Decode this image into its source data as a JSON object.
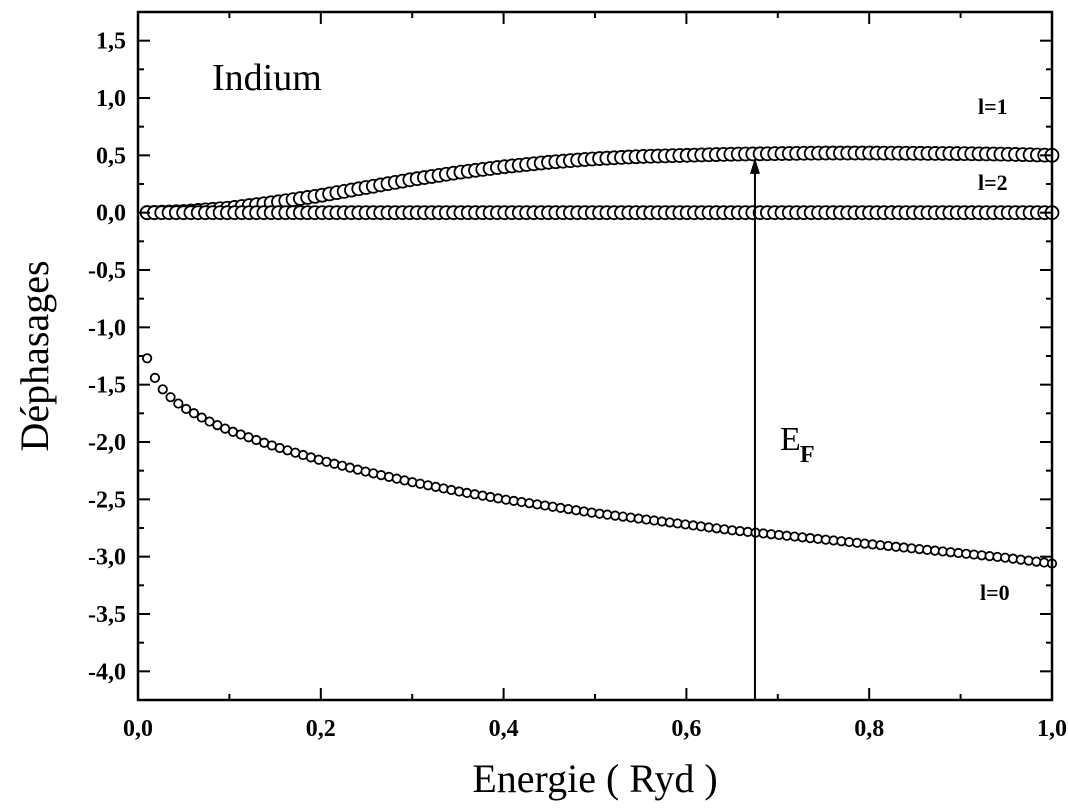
{
  "chart_data": {
    "type": "scatter",
    "title": "",
    "xlabel": "Energie ( Ryd )",
    "ylabel": "Déphasages",
    "xlim": [
      0.0,
      1.0
    ],
    "ylim": [
      -4.25,
      1.75
    ],
    "x_ticks": [
      0.0,
      0.2,
      0.4,
      0.6,
      0.8,
      1.0
    ],
    "x_tick_labels": [
      "0,0",
      "0,2",
      "0,4",
      "0,6",
      "0,8",
      "1,0"
    ],
    "y_ticks": [
      1.5,
      1.0,
      0.5,
      0.0,
      -0.5,
      -1.0,
      -1.5,
      -2.0,
      -2.5,
      -3.0,
      -3.5,
      -4.0
    ],
    "y_tick_labels": [
      "1,5",
      "1,0",
      "0,5",
      "0,0",
      "-0,5",
      "-1,0",
      "-1,5",
      "-2,0",
      "-2,5",
      "-3,0",
      "-3,5",
      "-4,0"
    ],
    "grid": false,
    "legend": "none",
    "marker": "open-circle",
    "annotations": {
      "element": "Indium",
      "label_l1": "l=1",
      "label_l2": "l=2",
      "label_l0": "l=0",
      "fermi_main": "E",
      "fermi_sub": "F",
      "fermi_energy": 0.675
    },
    "series": [
      {
        "label_key": "label_l1",
        "x": [
          0.01,
          0.05,
          0.1,
          0.15,
          0.2,
          0.25,
          0.3,
          0.35,
          0.4,
          0.45,
          0.5,
          0.55,
          0.6,
          0.65,
          0.7,
          0.75,
          0.8,
          0.85,
          0.9,
          0.95,
          1.0
        ],
        "y": [
          0.0,
          0.01,
          0.04,
          0.09,
          0.15,
          0.22,
          0.29,
          0.35,
          0.4,
          0.44,
          0.47,
          0.49,
          0.5,
          0.51,
          0.515,
          0.52,
          0.52,
          0.518,
          0.515,
          0.51,
          0.5
        ]
      },
      {
        "label_key": "label_l2",
        "x": [
          0.01,
          0.05,
          0.1,
          0.15,
          0.2,
          0.25,
          0.3,
          0.35,
          0.4,
          0.45,
          0.5,
          0.55,
          0.6,
          0.65,
          0.7,
          0.75,
          0.8,
          0.85,
          0.9,
          0.95,
          1.0
        ],
        "y": [
          0.0,
          0.0,
          0.0,
          0.0,
          0.0,
          0.0,
          0.0,
          0.0,
          0.0,
          0.0,
          0.0,
          0.0,
          0.0,
          0.0,
          0.0,
          0.0,
          0.0,
          0.0,
          0.0,
          0.0,
          0.0
        ]
      },
      {
        "label_key": "label_l0",
        "x": [
          0.01,
          0.02,
          0.03,
          0.04,
          0.05,
          0.075,
          0.1,
          0.15,
          0.2,
          0.25,
          0.3,
          0.35,
          0.4,
          0.45,
          0.5,
          0.55,
          0.6,
          0.65,
          0.7,
          0.75,
          0.8,
          0.85,
          0.9,
          0.95,
          1.0
        ],
        "y": [
          -1.27,
          -1.47,
          -1.57,
          -1.64,
          -1.7,
          -1.81,
          -1.9,
          -2.04,
          -2.16,
          -2.26,
          -2.35,
          -2.43,
          -2.5,
          -2.56,
          -2.62,
          -2.67,
          -2.72,
          -2.77,
          -2.81,
          -2.85,
          -2.89,
          -2.93,
          -2.97,
          -3.01,
          -3.06
        ]
      }
    ]
  }
}
